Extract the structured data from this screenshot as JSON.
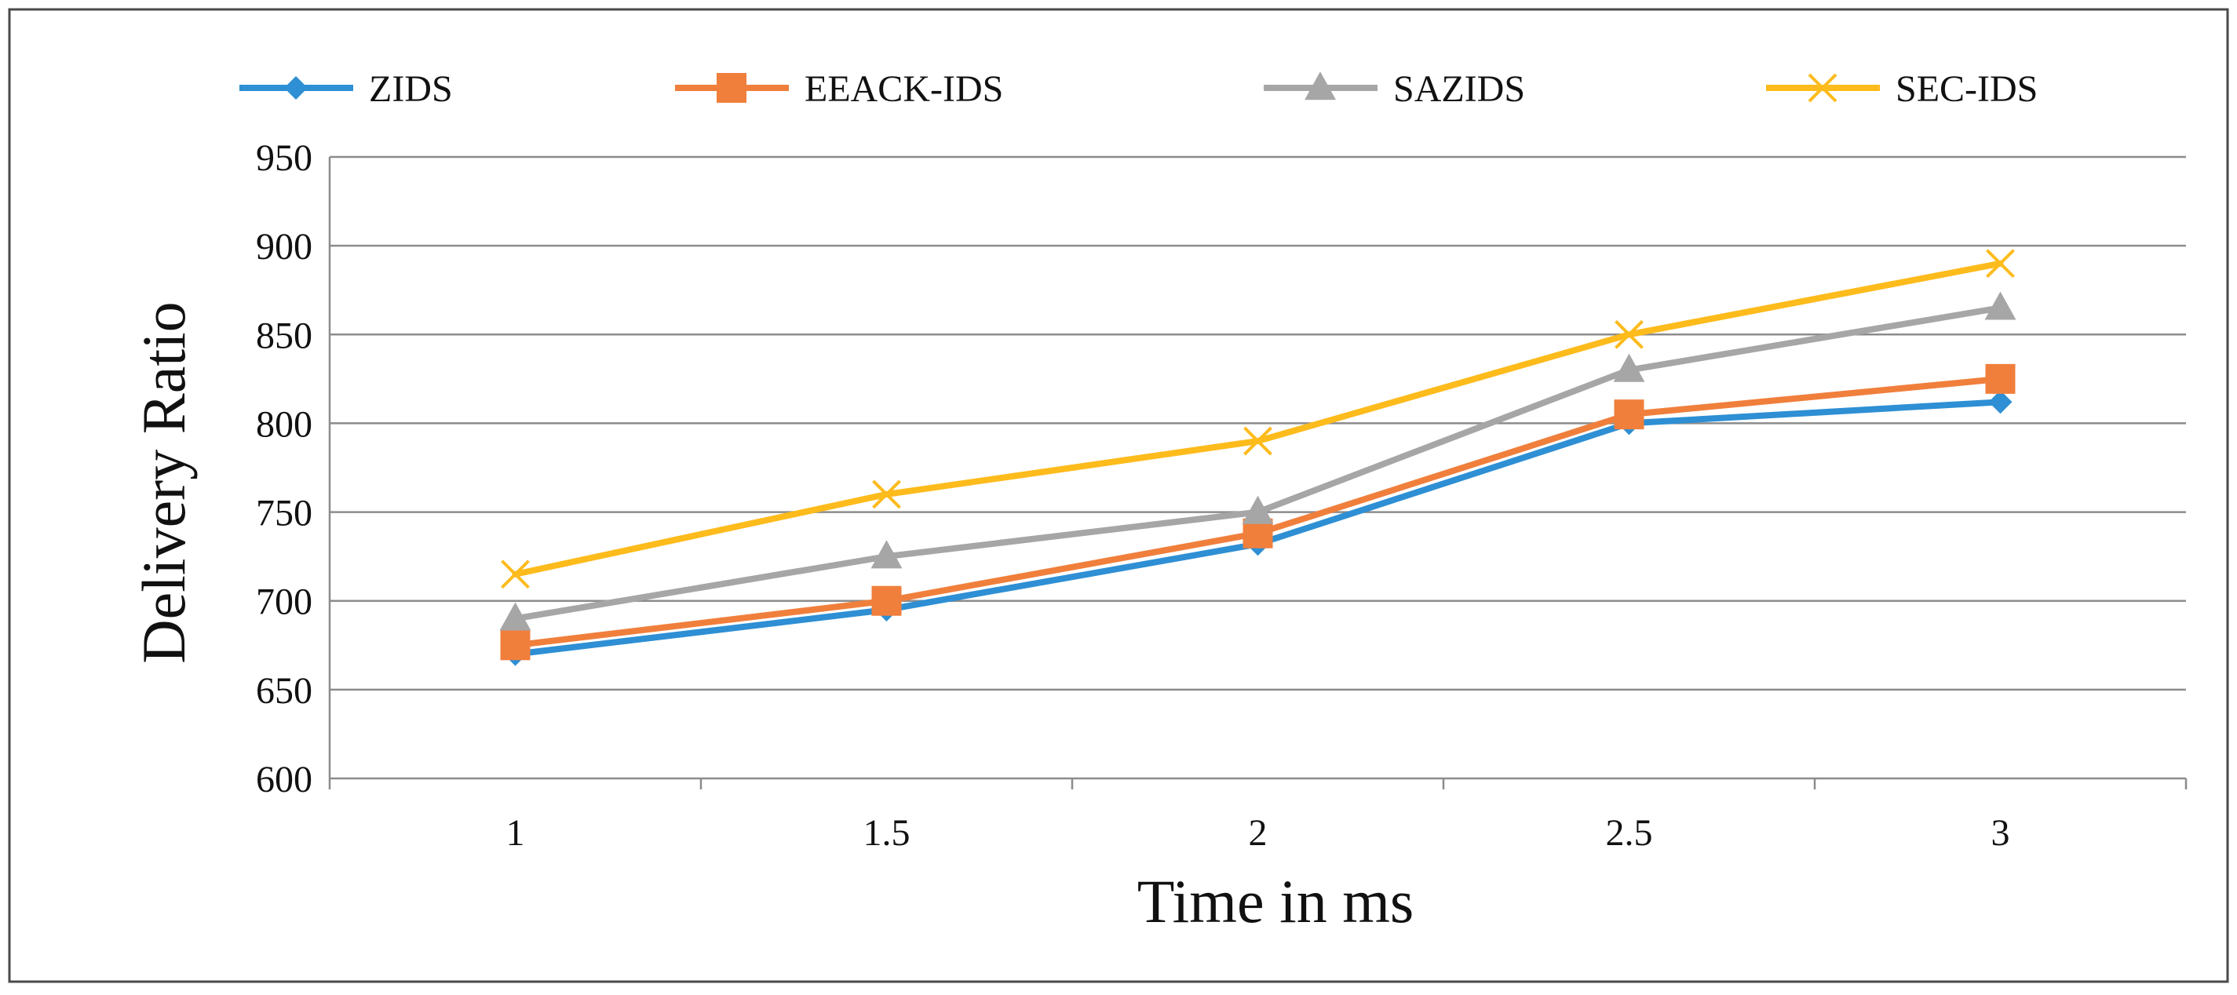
{
  "chart_data": {
    "type": "line",
    "title": "",
    "xlabel": "Time in ms",
    "ylabel": "Delivery Ratio",
    "x": [
      1,
      1.5,
      2,
      2.5,
      3
    ],
    "x_tick_labels": [
      "1",
      "1.5",
      "2",
      "2.5",
      "3"
    ],
    "ylim": [
      600,
      950
    ],
    "y_ticks": [
      600,
      650,
      700,
      750,
      800,
      850,
      900,
      950
    ],
    "y_tick_labels": [
      "600",
      "650",
      "700",
      "750",
      "800",
      "850",
      "900",
      "950"
    ],
    "grid": "horizontal",
    "legend_position": "top",
    "series": [
      {
        "name": "ZIDS",
        "color": "#2e8fd4",
        "marker": "diamond",
        "values": [
          670,
          695,
          732,
          800,
          812
        ]
      },
      {
        "name": "EEACK-IDS",
        "color": "#f07f3c",
        "marker": "square",
        "values": [
          675,
          700,
          738,
          805,
          825
        ]
      },
      {
        "name": "SAZIDS",
        "color": "#a6a6a6",
        "marker": "triangle",
        "values": [
          690,
          725,
          750,
          830,
          865
        ]
      },
      {
        "name": "SEC-IDS",
        "color": "#fdbb1c",
        "marker": "x",
        "values": [
          715,
          760,
          790,
          850,
          890
        ]
      }
    ]
  }
}
